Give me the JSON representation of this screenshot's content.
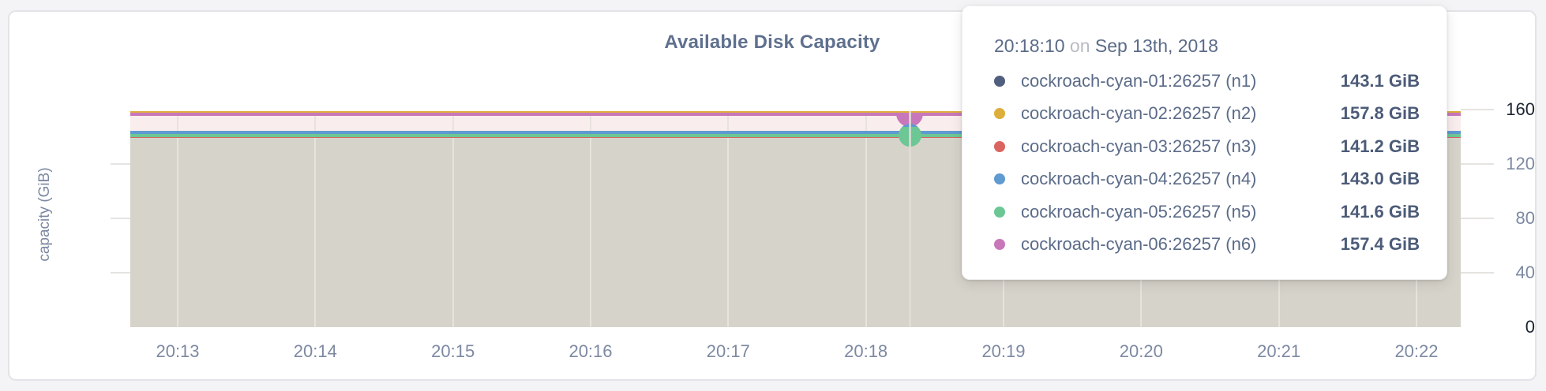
{
  "chart_data": {
    "type": "area",
    "title": "Available Disk Capacity",
    "ylabel": "capacity (GiB)",
    "xlabel": "",
    "x_ticks": [
      "20:13",
      "20:14",
      "20:15",
      "20:16",
      "20:17",
      "20:18",
      "20:19",
      "20:20",
      "20:21",
      "20:22"
    ],
    "y_ticks": [
      0,
      40,
      80,
      120,
      160
    ],
    "ylim": [
      0,
      160
    ],
    "grid": true,
    "legend_position": "tooltip",
    "series": [
      {
        "id": "n1",
        "name": "cockroach-cyan-01:26257 (n1)",
        "color": "#505f7d",
        "value": 143.1,
        "value_label": "143.1 GiB"
      },
      {
        "id": "n2",
        "name": "cockroach-cyan-02:26257 (n2)",
        "color": "#dcae3c",
        "value": 157.8,
        "value_label": "157.8 GiB"
      },
      {
        "id": "n3",
        "name": "cockroach-cyan-03:26257 (n3)",
        "color": "#da6460",
        "value": 141.2,
        "value_label": "141.2 GiB"
      },
      {
        "id": "n4",
        "name": "cockroach-cyan-04:26257 (n4)",
        "color": "#5f9ad1",
        "value": 143.0,
        "value_label": "143.0 GiB"
      },
      {
        "id": "n5",
        "name": "cockroach-cyan-05:26257 (n5)",
        "color": "#6cc795",
        "value": 141.6,
        "value_label": "141.6 GiB"
      },
      {
        "id": "n6",
        "name": "cockroach-cyan-06:26257 (n6)",
        "color": "#c878ba",
        "value": 157.4,
        "value_label": "157.4 GiB"
      }
    ],
    "hovered_point": {
      "time": "20:18:10",
      "connector": "on",
      "date": "Sep 13th, 2018",
      "highlighted_series": [
        "n6",
        "n5"
      ]
    },
    "fills": {
      "upper_band": "#f9eded",
      "lower_band": "#d6d3ca"
    }
  }
}
